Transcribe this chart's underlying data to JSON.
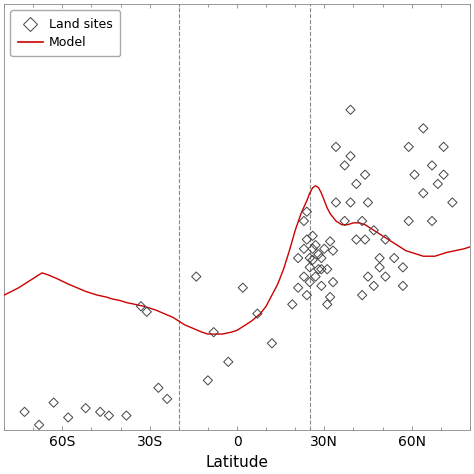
{
  "title": "",
  "xlabel": "Latitude",
  "ylabel": "",
  "xlim": [
    -80,
    80
  ],
  "ylim": [
    0.85,
    3.15
  ],
  "xtick_labels": [
    "60S",
    "30S",
    "0",
    "30N",
    "60N"
  ],
  "xtick_positions": [
    -60,
    -30,
    0,
    30,
    60
  ],
  "dashed_vlines": [
    -20,
    25
  ],
  "model_color": "#cc0000",
  "scatter_color": "none",
  "scatter_edgecolor": "#444444",
  "background_color": "#ffffff",
  "model_line": [
    [
      -80,
      1.58
    ],
    [
      -75,
      1.62
    ],
    [
      -70,
      1.67
    ],
    [
      -67,
      1.7
    ],
    [
      -65,
      1.69
    ],
    [
      -62,
      1.67
    ],
    [
      -58,
      1.64
    ],
    [
      -55,
      1.62
    ],
    [
      -52,
      1.6
    ],
    [
      -50,
      1.59
    ],
    [
      -48,
      1.58
    ],
    [
      -45,
      1.57
    ],
    [
      -43,
      1.56
    ],
    [
      -40,
      1.55
    ],
    [
      -38,
      1.54
    ],
    [
      -35,
      1.53
    ],
    [
      -32,
      1.52
    ],
    [
      -30,
      1.51
    ],
    [
      -28,
      1.5
    ],
    [
      -25,
      1.48
    ],
    [
      -22,
      1.46
    ],
    [
      -20,
      1.44
    ],
    [
      -18,
      1.42
    ],
    [
      -15,
      1.4
    ],
    [
      -12,
      1.38
    ],
    [
      -10,
      1.37
    ],
    [
      -8,
      1.37
    ],
    [
      -5,
      1.37
    ],
    [
      -2,
      1.38
    ],
    [
      0,
      1.39
    ],
    [
      2,
      1.41
    ],
    [
      5,
      1.44
    ],
    [
      8,
      1.48
    ],
    [
      10,
      1.52
    ],
    [
      12,
      1.58
    ],
    [
      14,
      1.64
    ],
    [
      16,
      1.72
    ],
    [
      18,
      1.82
    ],
    [
      20,
      1.93
    ],
    [
      22,
      2.02
    ],
    [
      24,
      2.09
    ],
    [
      25,
      2.13
    ],
    [
      26,
      2.16
    ],
    [
      27,
      2.17
    ],
    [
      28,
      2.16
    ],
    [
      29,
      2.13
    ],
    [
      30,
      2.09
    ],
    [
      31,
      2.05
    ],
    [
      32,
      2.02
    ],
    [
      33,
      2.0
    ],
    [
      34,
      1.98
    ],
    [
      35,
      1.97
    ],
    [
      36,
      1.96
    ],
    [
      37,
      1.96
    ],
    [
      38,
      1.96
    ],
    [
      40,
      1.97
    ],
    [
      42,
      1.97
    ],
    [
      44,
      1.96
    ],
    [
      46,
      1.94
    ],
    [
      48,
      1.92
    ],
    [
      50,
      1.9
    ],
    [
      52,
      1.88
    ],
    [
      54,
      1.86
    ],
    [
      56,
      1.84
    ],
    [
      58,
      1.82
    ],
    [
      60,
      1.81
    ],
    [
      62,
      1.8
    ],
    [
      64,
      1.79
    ],
    [
      66,
      1.79
    ],
    [
      68,
      1.79
    ],
    [
      70,
      1.8
    ],
    [
      72,
      1.81
    ],
    [
      75,
      1.82
    ],
    [
      78,
      1.83
    ],
    [
      80,
      1.84
    ]
  ],
  "scatter_points": [
    [
      -73,
      0.95
    ],
    [
      -68,
      0.88
    ],
    [
      -63,
      1.0
    ],
    [
      -58,
      0.92
    ],
    [
      -52,
      0.97
    ],
    [
      -47,
      0.95
    ],
    [
      -44,
      0.93
    ],
    [
      -38,
      0.93
    ],
    [
      -33,
      1.52
    ],
    [
      -31,
      1.49
    ],
    [
      -27,
      1.08
    ],
    [
      -24,
      1.02
    ],
    [
      -14,
      1.68
    ],
    [
      -10,
      1.12
    ],
    [
      -8,
      1.38
    ],
    [
      -3,
      1.22
    ],
    [
      2,
      1.62
    ],
    [
      7,
      1.48
    ],
    [
      12,
      1.32
    ],
    [
      19,
      1.53
    ],
    [
      21,
      1.62
    ],
    [
      21,
      1.78
    ],
    [
      23,
      1.98
    ],
    [
      23,
      1.83
    ],
    [
      23,
      1.68
    ],
    [
      24,
      1.58
    ],
    [
      24,
      1.88
    ],
    [
      24,
      2.03
    ],
    [
      25,
      1.78
    ],
    [
      25,
      1.73
    ],
    [
      25,
      1.65
    ],
    [
      26,
      1.77
    ],
    [
      26,
      1.83
    ],
    [
      26,
      1.9
    ],
    [
      27,
      1.68
    ],
    [
      27,
      1.85
    ],
    [
      28,
      1.72
    ],
    [
      28,
      1.8
    ],
    [
      29,
      1.78
    ],
    [
      29,
      1.72
    ],
    [
      29,
      1.63
    ],
    [
      30,
      1.83
    ],
    [
      31,
      1.53
    ],
    [
      31,
      1.72
    ],
    [
      32,
      1.87
    ],
    [
      32,
      1.57
    ],
    [
      33,
      1.65
    ],
    [
      33,
      1.82
    ],
    [
      34,
      2.08
    ],
    [
      34,
      2.38
    ],
    [
      37,
      1.98
    ],
    [
      37,
      2.28
    ],
    [
      39,
      2.33
    ],
    [
      39,
      2.08
    ],
    [
      39,
      2.58
    ],
    [
      41,
      2.18
    ],
    [
      41,
      1.88
    ],
    [
      43,
      1.98
    ],
    [
      43,
      1.58
    ],
    [
      44,
      2.23
    ],
    [
      44,
      1.88
    ],
    [
      45,
      2.08
    ],
    [
      45,
      1.68
    ],
    [
      47,
      1.93
    ],
    [
      47,
      1.63
    ],
    [
      49,
      1.78
    ],
    [
      49,
      1.73
    ],
    [
      51,
      1.88
    ],
    [
      51,
      1.68
    ],
    [
      54,
      1.78
    ],
    [
      57,
      1.73
    ],
    [
      57,
      1.63
    ],
    [
      59,
      1.98
    ],
    [
      59,
      2.38
    ],
    [
      61,
      2.23
    ],
    [
      64,
      2.13
    ],
    [
      64,
      2.48
    ],
    [
      67,
      2.28
    ],
    [
      67,
      1.98
    ],
    [
      69,
      2.18
    ],
    [
      71,
      2.38
    ],
    [
      71,
      2.23
    ],
    [
      74,
      2.08
    ]
  ],
  "legend_loc": "upper left",
  "figsize": [
    4.74,
    4.74
  ],
  "dpi": 100
}
